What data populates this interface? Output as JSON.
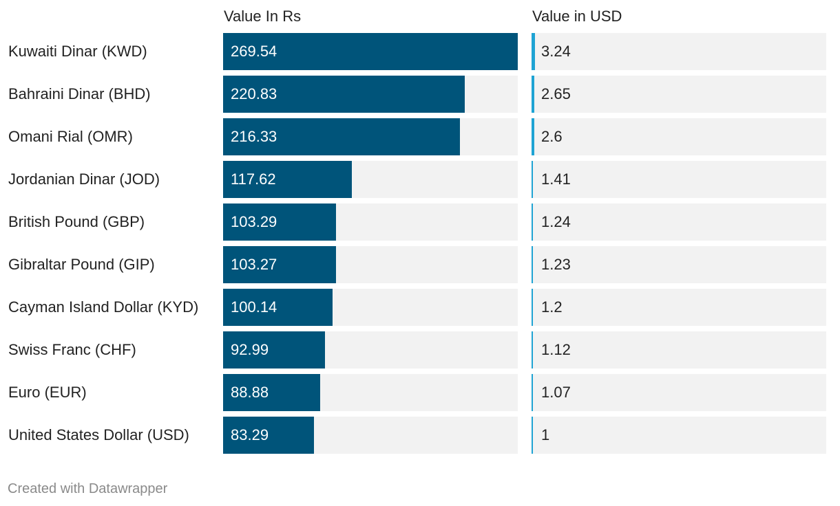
{
  "chart_data": {
    "type": "table",
    "columns": [
      "Value In Rs",
      "Value in USD"
    ],
    "categories": [
      "Kuwaiti Dinar (KWD)",
      "Bahraini Dinar (BHD)",
      "Omani Rial (OMR)",
      "Jordanian Dinar (JOD)",
      "British Pound (GBP)",
      "Gibraltar Pound (GIP)",
      "Cayman Island Dollar (KYD)",
      "Swiss Franc (CHF)",
      "Euro (EUR)",
      "United States Dollar (USD)"
    ],
    "series": [
      {
        "name": "Value In Rs",
        "values": [
          269.54,
          220.83,
          216.33,
          117.62,
          103.29,
          103.27,
          100.14,
          92.99,
          88.88,
          83.29
        ],
        "labels": [
          "269.54",
          "220.83",
          "216.33",
          "117.62",
          "103.29",
          "103.27",
          "100.14",
          "92.99",
          "88.88",
          "83.29"
        ],
        "range": [
          0,
          269.54
        ],
        "color": "#00547a"
      },
      {
        "name": "Value in USD",
        "values": [
          3.24,
          2.65,
          2.6,
          1.41,
          1.24,
          1.23,
          1.2,
          1.12,
          1.07,
          1
        ],
        "labels": [
          "3.24",
          "2.65",
          "2.6",
          "1.41",
          "1.24",
          "1.23",
          "1.2",
          "1.12",
          "1.07",
          "1"
        ],
        "color": "#1ea3d3"
      }
    ]
  },
  "footer": {
    "credit": "Created with Datawrapper"
  }
}
